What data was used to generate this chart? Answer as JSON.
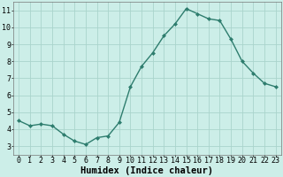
{
  "x": [
    0,
    1,
    2,
    3,
    4,
    5,
    6,
    7,
    8,
    9,
    10,
    11,
    12,
    13,
    14,
    15,
    16,
    17,
    18,
    19,
    20,
    21,
    22,
    23
  ],
  "y": [
    4.5,
    4.2,
    4.3,
    4.2,
    3.7,
    3.3,
    3.1,
    3.5,
    3.6,
    4.4,
    6.5,
    7.7,
    8.5,
    9.5,
    10.2,
    11.1,
    10.8,
    10.5,
    10.4,
    9.3,
    8.0,
    7.3,
    6.7,
    6.5
  ],
  "line_color": "#2e7d6e",
  "marker": "D",
  "marker_size": 2.0,
  "bg_color": "#cceee8",
  "grid_color": "#aad4cc",
  "xlabel": "Humidex (Indice chaleur)",
  "xlim": [
    -0.5,
    23.5
  ],
  "ylim": [
    2.5,
    11.5
  ],
  "yticks": [
    3,
    4,
    5,
    6,
    7,
    8,
    9,
    10,
    11
  ],
  "font_size": 6.0,
  "xlabel_fontsize": 7.5
}
